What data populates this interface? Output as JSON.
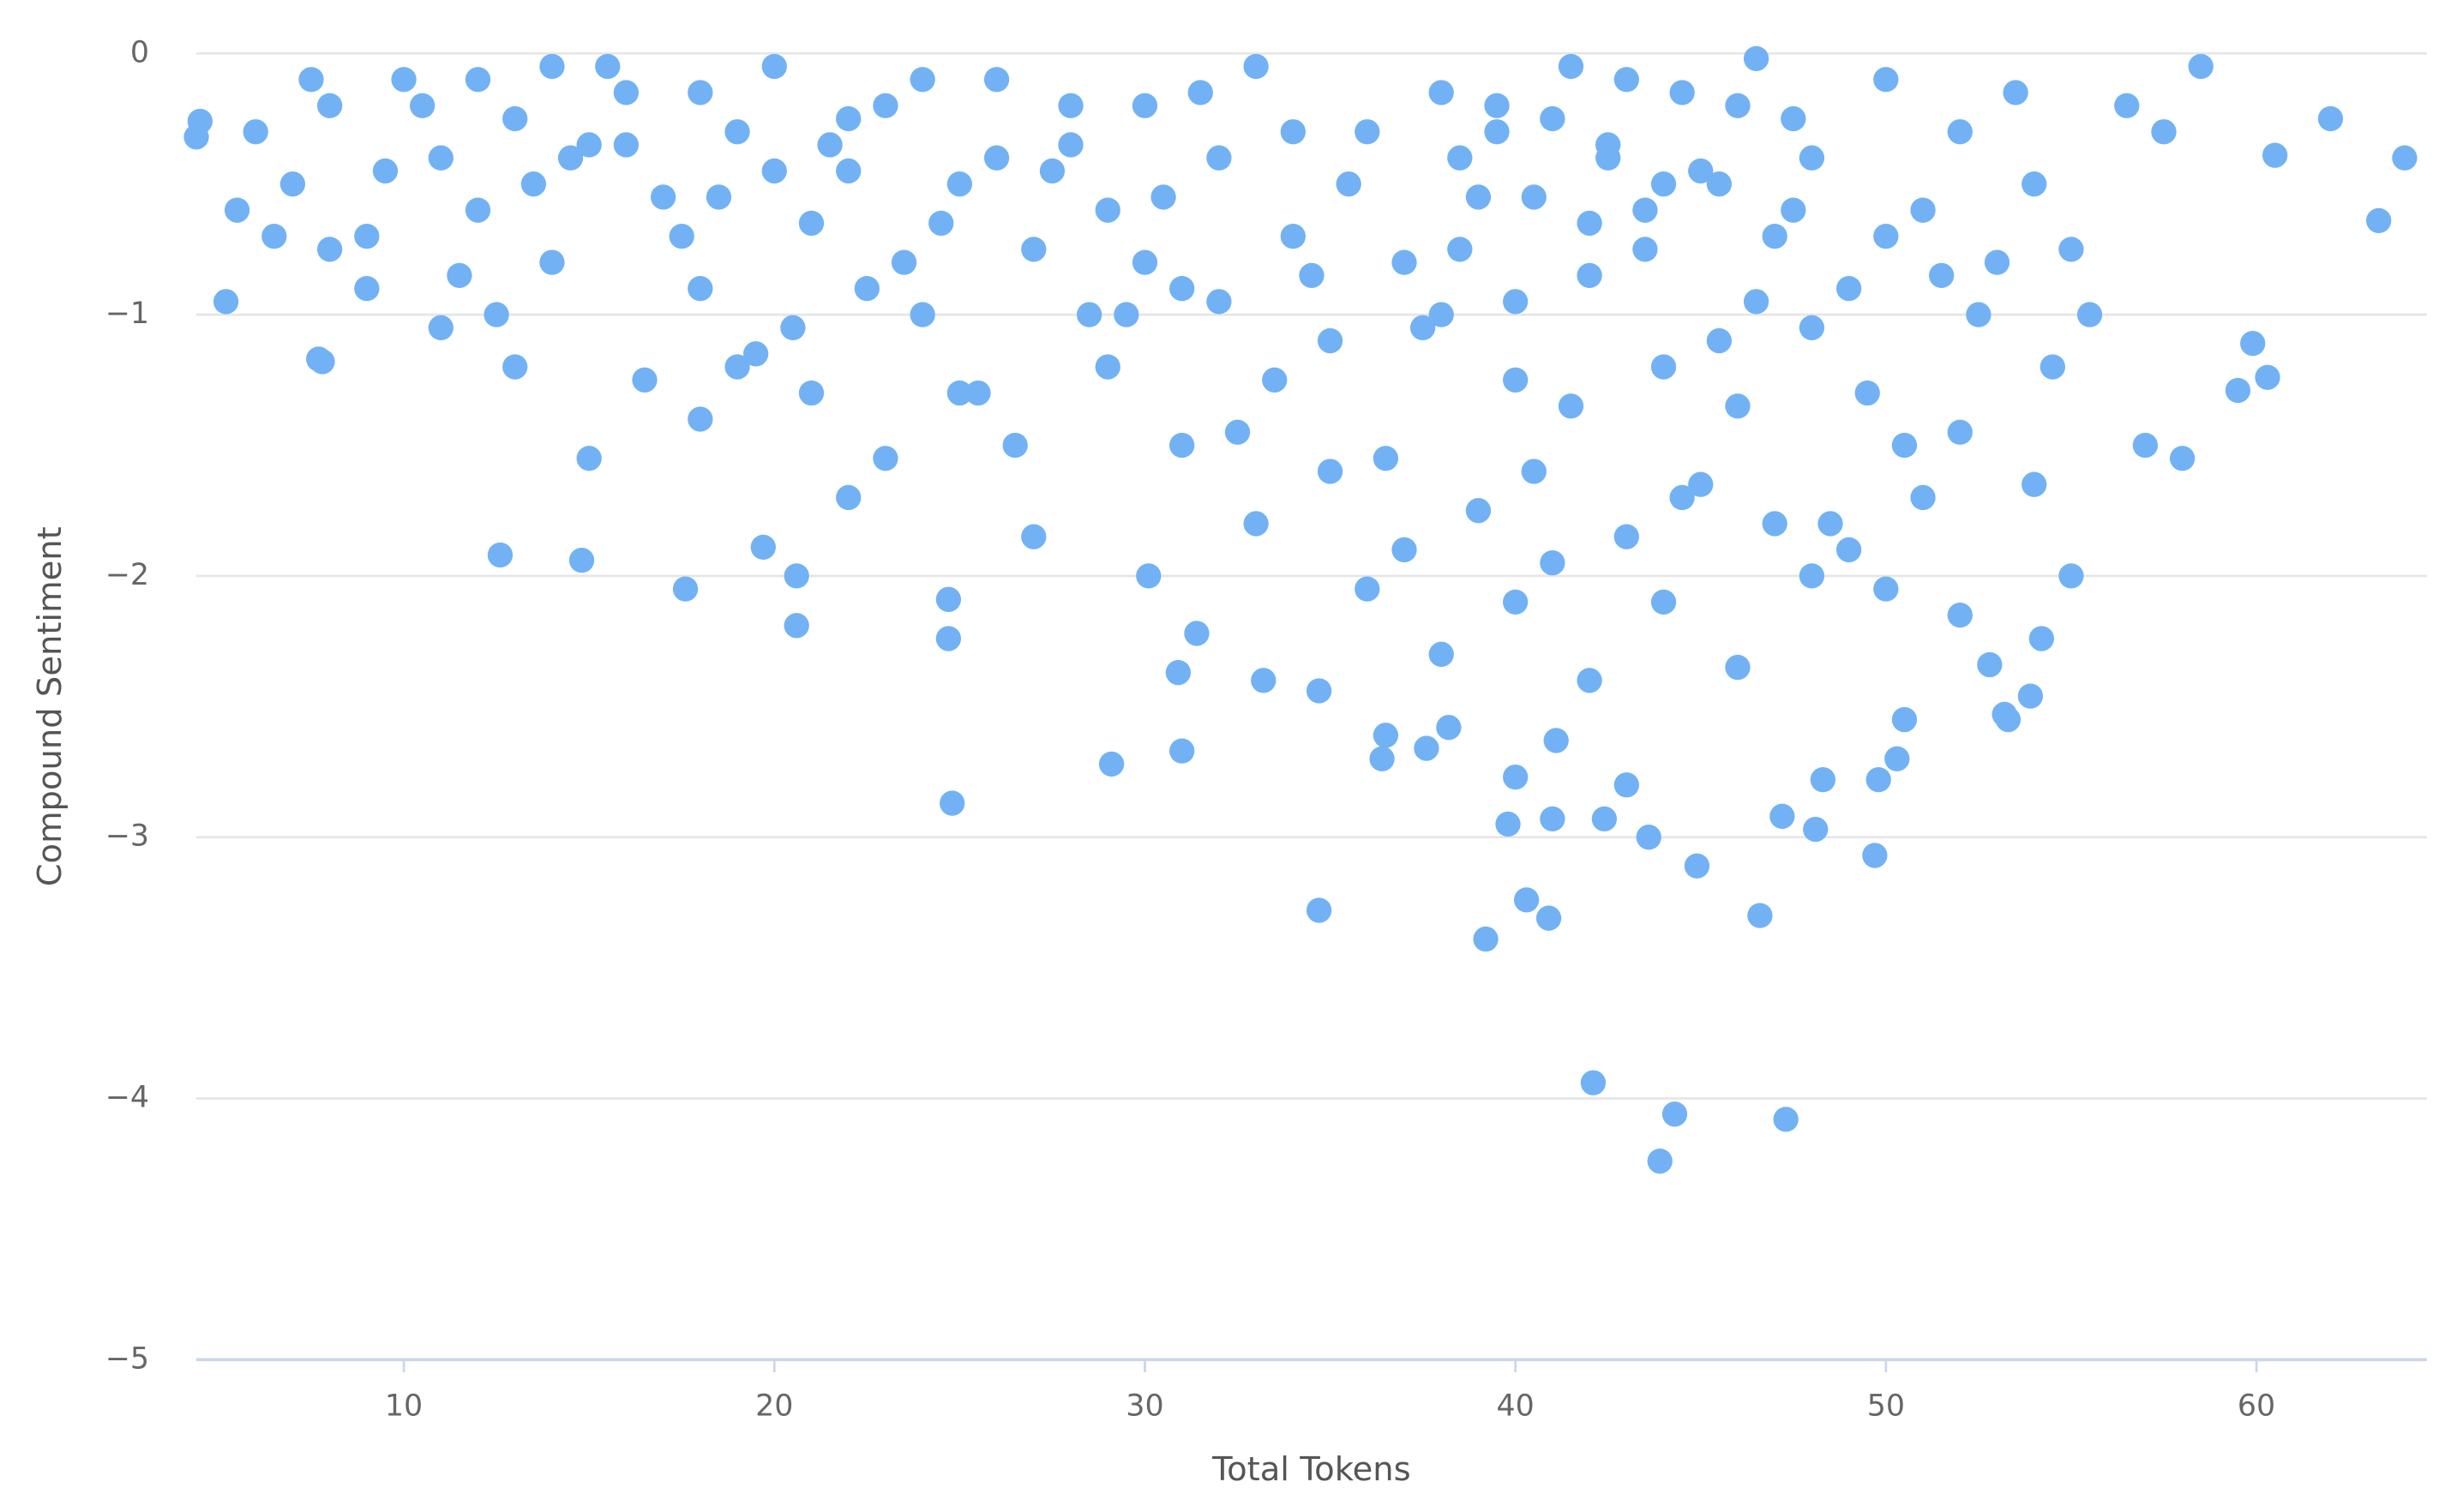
{
  "chart_data": {
    "type": "scatter",
    "x_label": "Total Tokens",
    "y_label": "Compound Sentiment",
    "color": "#72b2f4",
    "grid": true,
    "xlim": [
      4.4,
      64.6
    ],
    "ylim": [
      -5,
      0
    ],
    "xticks": [
      10,
      20,
      30,
      40,
      50,
      60
    ],
    "yticks": [
      0,
      {
        "value": -1,
        "label": "−1"
      },
      {
        "value": -2,
        "label": "−2"
      },
      {
        "value": -3,
        "label": "−3"
      },
      {
        "value": -4,
        "label": "−4"
      },
      {
        "value": -5,
        "label": "−5"
      }
    ],
    "x": [
      6,
      7,
      8,
      9,
      10,
      11,
      12,
      13,
      14,
      15,
      16,
      17,
      18,
      19,
      20,
      21,
      22,
      23,
      24,
      25,
      26,
      27,
      28,
      29,
      30,
      31,
      32,
      33,
      34,
      35,
      36,
      37,
      38,
      39,
      40,
      41,
      42,
      43,
      44,
      45,
      46,
      47,
      48,
      49,
      50,
      51,
      52,
      53,
      54,
      55,
      5.5,
      7.5,
      9.5,
      11.5,
      13.5,
      15.5,
      17.5,
      19.5,
      21.5,
      23.5,
      25.5,
      27.5,
      29.5,
      31.5,
      33.5,
      35.5,
      37.5,
      39.5,
      41.5,
      43.5,
      45.5,
      47.5,
      49.5,
      51.5,
      53.5,
      55.5,
      57.5,
      58.5,
      56.5,
      54.5,
      10.5,
      12.5,
      14.5,
      16.5,
      18.5,
      20.5,
      22.5,
      24.5,
      26.5,
      28.5,
      30.5,
      32.5,
      34.5,
      36.5,
      38.5,
      40.5,
      42.5,
      44.5,
      46.5,
      48.5,
      50.5,
      52.5,
      37,
      39,
      41,
      43,
      45,
      47,
      49,
      51,
      35,
      38,
      40,
      42,
      44,
      46,
      48,
      50,
      52,
      54,
      8,
      13,
      18,
      22,
      27,
      31,
      33,
      36,
      55,
      57,
      6.5,
      9,
      11,
      15,
      19,
      21,
      23,
      25,
      29,
      58,
      38.5,
      39.5,
      40.5,
      41.5,
      42.5,
      43.5,
      44.5,
      45.5,
      46.5,
      47.5,
      38,
      40,
      42,
      44,
      46,
      48,
      50,
      52,
      34,
      32,
      14,
      16,
      18,
      20,
      22,
      24,
      26,
      28,
      30,
      12,
      24.8,
      29.1,
      31,
      34.7,
      39.2,
      40.3,
      40.9,
      42.1,
      44.3,
      43.9,
      47.3,
      46.6,
      49.7,
      44.9,
      43.6,
      12.6,
      14.8,
      17.6,
      20.6,
      20.6,
      19.7,
      24.7,
      24.7,
      30.1,
      31.4,
      30.9,
      33.2,
      34.7,
      36.4,
      36.5,
      37.6,
      38.2,
      39.8,
      40,
      41,
      42.4,
      43,
      41.1,
      47.2,
      48.1,
      48.3,
      49.8,
      50.3,
      50.5,
      53.2,
      53.3,
      53.9,
      52.8,
      54.2,
      62,
      64,
      63.3,
      60.5,
      60.3,
      59.9,
      59.5,
      7.8,
      7.7,
      4.5,
      4.4,
      5.2
    ],
    "values": [
      -0.3,
      -0.5,
      -0.2,
      -0.7,
      -0.1,
      -0.4,
      -0.6,
      -0.25,
      -0.8,
      -0.35,
      -0.15,
      -0.55,
      -0.9,
      -0.3,
      -0.05,
      -0.65,
      -0.45,
      -0.2,
      -1.0,
      -0.5,
      -0.1,
      -0.75,
      -0.35,
      -0.6,
      -0.2,
      -0.9,
      -0.4,
      -0.05,
      -0.7,
      -1.1,
      -0.3,
      -0.8,
      -0.15,
      -0.55,
      -0.95,
      -0.25,
      -0.65,
      -0.1,
      -1.2,
      -0.45,
      -0.2,
      -0.7,
      -0.4,
      -0.9,
      -0.1,
      -0.6,
      -0.3,
      -0.8,
      -0.5,
      -0.75,
      -0.6,
      -0.1,
      -0.45,
      -0.85,
      -0.5,
      -0.05,
      -0.7,
      -1.15,
      -0.35,
      -0.8,
      -1.3,
      -0.45,
      -1.0,
      -0.15,
      -1.25,
      -0.5,
      -1.05,
      -0.3,
      -1.35,
      -0.6,
      -1.1,
      -0.25,
      -1.3,
      -0.85,
      -0.15,
      -1.0,
      -0.3,
      -0.05,
      -0.2,
      -1.2,
      -0.2,
      -1.0,
      -0.4,
      -1.25,
      -0.55,
      -1.05,
      -0.9,
      -0.65,
      -1.5,
      -1.0,
      -0.55,
      -1.45,
      -0.85,
      -1.55,
      -0.75,
      -1.6,
      -0.4,
      -1.7,
      -0.95,
      -1.8,
      -1.5,
      -1.0,
      -1.9,
      -1.75,
      -1.95,
      -1.85,
      -1.65,
      -1.8,
      -1.9,
      -1.7,
      -1.6,
      -2.3,
      -2.1,
      -2.4,
      -2.1,
      -2.35,
      -2.0,
      -2.05,
      -2.15,
      -1.65,
      -0.75,
      -1.2,
      -1.4,
      -1.7,
      -1.85,
      -1.5,
      -1.8,
      -2.05,
      -2.0,
      -1.5,
      -0.7,
      -0.9,
      -1.05,
      -1.55,
      -1.2,
      -1.3,
      -1.55,
      -1.3,
      -1.2,
      -1.55,
      -0.4,
      -0.2,
      -0.55,
      -0.05,
      -0.35,
      -0.75,
      -0.15,
      -0.5,
      -0.02,
      -0.6,
      -1.0,
      -1.25,
      -0.85,
      -0.5,
      -1.35,
      -1.05,
      -0.7,
      -1.45,
      -0.3,
      -0.95,
      -0.05,
      -0.35,
      -0.15,
      -0.45,
      -0.25,
      -0.1,
      -0.4,
      -0.2,
      -0.8,
      -0.1,
      -2.87,
      -2.72,
      -2.67,
      -3.28,
      -3.39,
      -3.24,
      -3.31,
      -3.94,
      -4.06,
      -4.24,
      -4.08,
      -3.3,
      -3.07,
      -3.11,
      -3.0,
      -1.92,
      -1.94,
      -2.05,
      -2.19,
      -2.0,
      -1.89,
      -2.09,
      -2.24,
      -2.0,
      -2.22,
      -2.37,
      -2.4,
      -2.44,
      -2.7,
      -2.61,
      -2.66,
      -2.58,
      -2.95,
      -2.77,
      -2.93,
      -2.93,
      -2.8,
      -2.63,
      -2.92,
      -2.97,
      -2.78,
      -2.78,
      -2.7,
      -2.55,
      -2.53,
      -2.55,
      -2.46,
      -2.34,
      -2.24,
      -0.25,
      -0.4,
      -0.64,
      -0.39,
      -1.24,
      -1.11,
      -1.29,
      -1.18,
      -1.17,
      -0.26,
      -0.32,
      -0.95
    ]
  }
}
